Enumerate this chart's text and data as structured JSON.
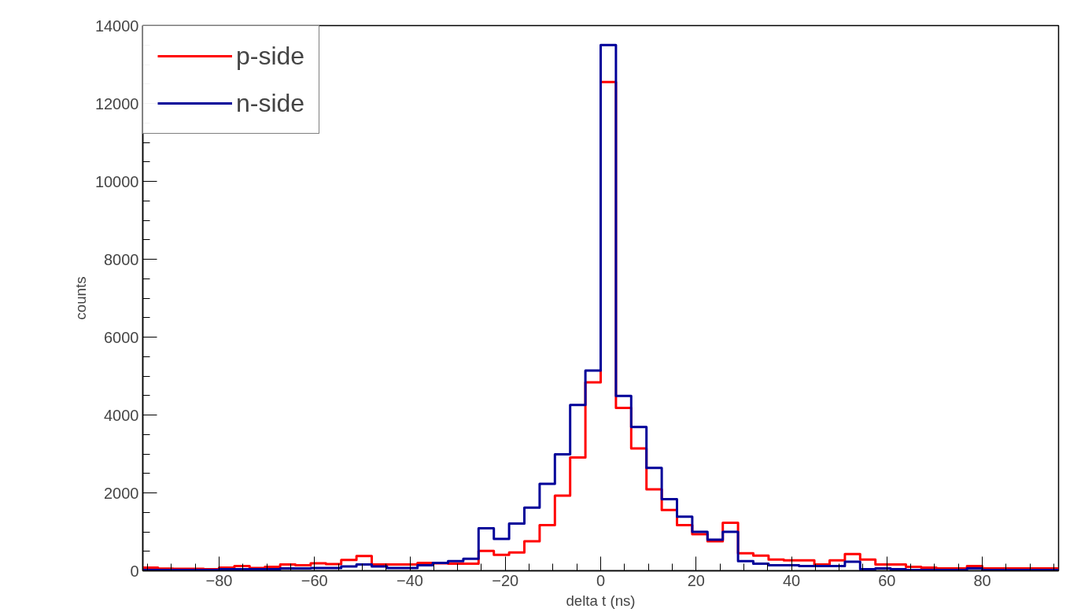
{
  "chart_data": {
    "type": "histogram",
    "xlabel": "delta t (ns)",
    "ylabel": "counts",
    "bins": [
      -96,
      -92.8,
      -89.6,
      -86.4,
      -83.2,
      -80,
      -76.8,
      -73.6,
      -70.4,
      -67.2,
      -64,
      -60.8,
      -57.6,
      -54.4,
      -51.2,
      -48,
      -44.8,
      -41.6,
      -38.4,
      -35.2,
      -32,
      -28.8,
      -25.6,
      -22.4,
      -19.2,
      -16,
      -12.8,
      -9.6,
      -6.4,
      -3.2,
      0,
      3.2,
      6.4,
      9.6,
      12.8,
      16,
      19.2,
      22.4,
      25.6,
      28.8,
      32,
      35.2,
      38.4,
      41.6,
      44.8,
      48,
      51.2,
      54.4,
      57.6,
      60.8,
      64,
      67.2,
      70.4,
      73.6,
      76.8,
      80,
      83.2,
      86.4,
      89.6,
      92.8,
      96
    ],
    "series": [
      {
        "name": "p-side",
        "color": "#ff0000",
        "values": [
          80,
          55,
          50,
          50,
          40,
          80,
          120,
          70,
          100,
          160,
          140,
          190,
          170,
          280,
          380,
          160,
          160,
          160,
          200,
          190,
          180,
          180,
          510,
          410,
          470,
          760,
          1170,
          1930,
          2910,
          4840,
          12550,
          4180,
          3140,
          2090,
          1560,
          1170,
          940,
          760,
          1230,
          450,
          390,
          290,
          270,
          270,
          160,
          270,
          430,
          290,
          160,
          160,
          100,
          80,
          60,
          60,
          120,
          60,
          60,
          60,
          60,
          60
        ]
      },
      {
        "name": "n-side",
        "color": "#000099",
        "values": [
          20,
          20,
          20,
          20,
          20,
          40,
          40,
          40,
          40,
          60,
          60,
          70,
          70,
          110,
          160,
          110,
          70,
          70,
          140,
          200,
          250,
          310,
          1090,
          820,
          1210,
          1620,
          2230,
          2990,
          4260,
          5140,
          13500,
          4490,
          3690,
          2640,
          1840,
          1390,
          1000,
          800,
          1000,
          250,
          180,
          140,
          140,
          120,
          120,
          120,
          230,
          40,
          60,
          40,
          20,
          20,
          20,
          20,
          60,
          20,
          20,
          20,
          20,
          20
        ]
      }
    ],
    "xlim": [
      -96,
      96
    ],
    "xticks": [
      -80,
      -60,
      -40,
      -20,
      0,
      20,
      40,
      60,
      80
    ],
    "ylim": [
      0,
      14000
    ],
    "yticks": [
      0,
      2000,
      4000,
      6000,
      8000,
      10000,
      12000,
      14000
    ],
    "grid": false,
    "legend": "top left",
    "line_style": "solid"
  }
}
